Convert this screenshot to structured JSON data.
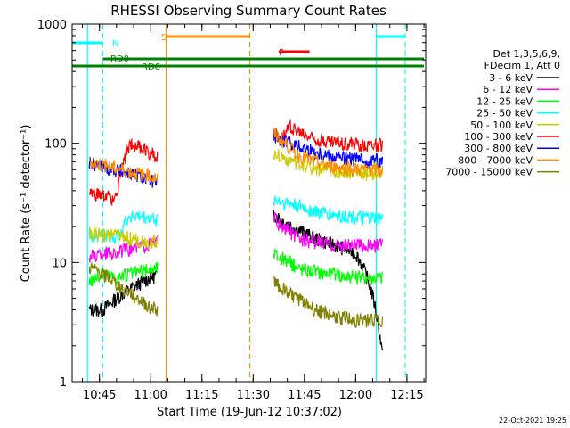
{
  "chart_data": {
    "type": "line",
    "title": "RHESSI Observing Summary Count Rates",
    "xlabel": "Start Time (19-Jun-12 10:37:02)",
    "ylabel": "Count Rate (s⁻¹ detector⁻¹)",
    "yscale": "log",
    "ylim": [
      1,
      1000
    ],
    "xlim_minutes": [
      37.0,
      140.5
    ],
    "x_ticks": [
      {
        "label": "10:45",
        "min": 45
      },
      {
        "label": "11:00",
        "min": 60
      },
      {
        "label": "11:15",
        "min": 75
      },
      {
        "label": "11:30",
        "min": 90
      },
      {
        "label": "11:45",
        "min": 105
      },
      {
        "label": "12:00",
        "min": 120
      },
      {
        "label": "12:15",
        "min": 135
      }
    ],
    "y_ticks": [
      {
        "label": "1",
        "value": 1
      },
      {
        "label": "10",
        "value": 10
      },
      {
        "label": "100",
        "value": 100
      },
      {
        "label": "1000",
        "value": 1000
      }
    ],
    "legend_header": [
      "Det 1,3,5,6,9,",
      "FDecim 1, Att 0"
    ],
    "legend_position": "right",
    "series": [
      {
        "name": "3 - 6 keV",
        "color": "#000000",
        "seg1": [
          [
            42,
            4
          ],
          [
            46,
            4
          ],
          [
            50,
            5
          ],
          [
            54,
            6
          ],
          [
            58,
            7
          ],
          [
            62,
            8
          ]
        ],
        "seg2": [
          [
            96,
            26
          ],
          [
            99,
            22
          ],
          [
            103,
            19
          ],
          [
            108,
            16
          ],
          [
            114,
            14
          ],
          [
            120,
            12
          ],
          [
            127,
            2.5
          ],
          [
            128,
            1.5
          ]
        ]
      },
      {
        "name": "6 - 12 keV",
        "color": "#ff00ff",
        "seg1": [
          [
            42,
            11
          ],
          [
            46,
            12
          ],
          [
            50,
            12
          ],
          [
            54,
            13
          ],
          [
            58,
            14
          ],
          [
            62,
            15
          ]
        ],
        "seg2": [
          [
            96,
            24
          ],
          [
            98,
            20
          ],
          [
            101,
            18
          ],
          [
            103,
            16
          ],
          [
            108,
            15
          ],
          [
            114,
            14
          ],
          [
            120,
            14
          ],
          [
            126,
            14
          ],
          [
            128,
            14
          ]
        ]
      },
      {
        "name": "12 - 25 keV",
        "color": "#00ff00",
        "seg1": [
          [
            42,
            7
          ],
          [
            46,
            8
          ],
          [
            50,
            7.5
          ],
          [
            54,
            8
          ],
          [
            58,
            8.5
          ],
          [
            62,
            9
          ]
        ],
        "seg2": [
          [
            96,
            12
          ],
          [
            98,
            11
          ],
          [
            101,
            10
          ],
          [
            103,
            9
          ],
          [
            108,
            8.5
          ],
          [
            114,
            8
          ],
          [
            120,
            7.5
          ],
          [
            128,
            7.5
          ]
        ]
      },
      {
        "name": "25 - 50 keV",
        "color": "#00ffff",
        "seg1": [
          [
            42,
            17
          ],
          [
            46,
            17
          ],
          [
            50,
            16
          ],
          [
            54,
            25
          ],
          [
            58,
            24
          ],
          [
            62,
            23
          ]
        ],
        "seg2": [
          [
            96,
            34
          ],
          [
            99,
            32
          ],
          [
            103,
            30
          ],
          [
            108,
            27
          ],
          [
            114,
            25
          ],
          [
            120,
            24
          ],
          [
            128,
            23
          ]
        ]
      },
      {
        "name": "50 - 100 keV",
        "color": "#cccc00",
        "seg1": [
          [
            42,
            18
          ],
          [
            46,
            17
          ],
          [
            50,
            17
          ],
          [
            54,
            16
          ],
          [
            58,
            15
          ],
          [
            62,
            15
          ]
        ],
        "seg2": [
          [
            96,
            85
          ],
          [
            99,
            75
          ],
          [
            103,
            68
          ],
          [
            108,
            62
          ],
          [
            114,
            58
          ],
          [
            120,
            56
          ],
          [
            128,
            56
          ]
        ]
      },
      {
        "name": "100 - 300 keV",
        "color": "#ff0000",
        "seg1": [
          [
            42,
            38
          ],
          [
            46,
            36
          ],
          [
            50,
            35
          ],
          [
            54,
            100
          ],
          [
            58,
            90
          ],
          [
            62,
            78
          ]
        ],
        "seg2": [
          [
            96,
            120
          ],
          [
            98,
            110
          ],
          [
            101,
            140
          ],
          [
            103,
            125
          ],
          [
            108,
            110
          ],
          [
            114,
            102
          ],
          [
            120,
            98
          ],
          [
            128,
            96
          ]
        ]
      },
      {
        "name": "300 - 800 keV",
        "color": "#0000ff",
        "seg1": [
          [
            42,
            68
          ],
          [
            46,
            64
          ],
          [
            50,
            60
          ],
          [
            54,
            56
          ],
          [
            58,
            52
          ],
          [
            62,
            47
          ]
        ],
        "seg2": [
          [
            96,
            115
          ],
          [
            98,
            105
          ],
          [
            101,
            100
          ],
          [
            103,
            95
          ],
          [
            108,
            85
          ],
          [
            114,
            78
          ],
          [
            120,
            73
          ],
          [
            128,
            71
          ]
        ]
      },
      {
        "name": "800 - 7000 keV",
        "color": "#ff8c00",
        "seg1": [
          [
            42,
            70
          ],
          [
            46,
            66
          ],
          [
            50,
            62
          ],
          [
            54,
            58
          ],
          [
            58,
            55
          ],
          [
            62,
            51
          ]
        ],
        "seg2": [
          [
            96,
            122
          ],
          [
            98,
            108
          ],
          [
            101,
            92
          ],
          [
            103,
            80
          ],
          [
            108,
            70
          ],
          [
            114,
            64
          ],
          [
            120,
            61
          ],
          [
            128,
            60
          ]
        ]
      },
      {
        "name": "7000 - 15000 keV",
        "color": "#808000",
        "seg1": [
          [
            42,
            9
          ],
          [
            46,
            8
          ],
          [
            50,
            6.5
          ],
          [
            54,
            5.5
          ],
          [
            58,
            4.5
          ],
          [
            62,
            4
          ]
        ],
        "seg2": [
          [
            96,
            7
          ],
          [
            99,
            6
          ],
          [
            103,
            5
          ],
          [
            108,
            4
          ],
          [
            114,
            3.5
          ],
          [
            120,
            3.3
          ],
          [
            128,
            3.3
          ]
        ]
      }
    ],
    "flag_bars": [
      {
        "label": "N",
        "color": "#00ffff",
        "min_start": 37.0,
        "min_end": 46.0
      },
      {
        "label": "",
        "color": "#00ffff",
        "min_start": 126.0,
        "min_end": 134.5
      },
      {
        "label": "S",
        "color": "#ff8c00",
        "min_start": 64.5,
        "min_end": 89.0
      },
      {
        "label": "F",
        "color": "#ff0000",
        "min_start": 97.5,
        "min_end": 106.5
      },
      {
        "label": "RD0",
        "color": "#008000",
        "min_start": 46.0,
        "min_end": 140.0
      },
      {
        "label": "RD6",
        "color": "#008000",
        "min_start": 37.0,
        "min_end": 140.0
      }
    ],
    "vertical_lines": [
      {
        "min": 41.5,
        "color": "#00ffff",
        "style": "solid"
      },
      {
        "min": 46.0,
        "color": "#00ffff",
        "style": "dashed"
      },
      {
        "min": 64.5,
        "color": "#ff8c00",
        "style": "solid"
      },
      {
        "min": 89.0,
        "color": "#ff8c00",
        "style": "dashed"
      },
      {
        "min": 126.0,
        "color": "#00ffff",
        "style": "solid"
      },
      {
        "min": 134.5,
        "color": "#00ffff",
        "style": "dashed"
      }
    ],
    "footer_timestamp": "22-Oct-2021 19:25"
  }
}
